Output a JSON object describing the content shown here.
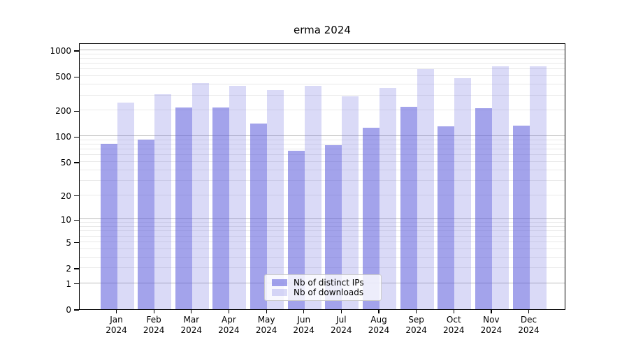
{
  "title": "erma 2024",
  "legend": {
    "items": [
      {
        "label": "Nb of distinct IPs",
        "color": "rgba(87,87,219,0.55)"
      },
      {
        "label": "Nb of downloads",
        "color": "rgba(87,87,219,0.22)"
      }
    ]
  },
  "colors": {
    "bar_distinct_ips": "rgba(87,87,219,0.55)",
    "bar_downloads": "rgba(87,87,219,0.22)",
    "grid_major": "#bbbbbb",
    "grid_minor": "#e9e9e9",
    "spine": "#000000",
    "background": "#ffffff"
  },
  "chart_data": {
    "type": "bar",
    "title": "erma 2024",
    "categories": [
      "Jan 2024",
      "Feb 2024",
      "Mar 2024",
      "Apr 2024",
      "May 2024",
      "Jun 2024",
      "Jul 2024",
      "Aug 2024",
      "Sep 2024",
      "Oct 2024",
      "Nov 2024",
      "Dec 2024"
    ],
    "series": [
      {
        "name": "Nb of distinct IPs",
        "values": [
          82,
          92,
          215,
          215,
          142,
          68,
          78,
          125,
          222,
          130,
          214,
          134
        ]
      },
      {
        "name": "Nb of downloads",
        "values": [
          245,
          307,
          420,
          385,
          347,
          390,
          292,
          368,
          610,
          476,
          648,
          648
        ]
      }
    ],
    "xlabel": "",
    "ylabel": "",
    "yscale": "log1p",
    "yticks": [
      0,
      1,
      2,
      5,
      10,
      20,
      50,
      100,
      200,
      500,
      1000
    ],
    "ylim": [
      0,
      1228
    ],
    "grid": "both",
    "legend_position": "lower center"
  }
}
